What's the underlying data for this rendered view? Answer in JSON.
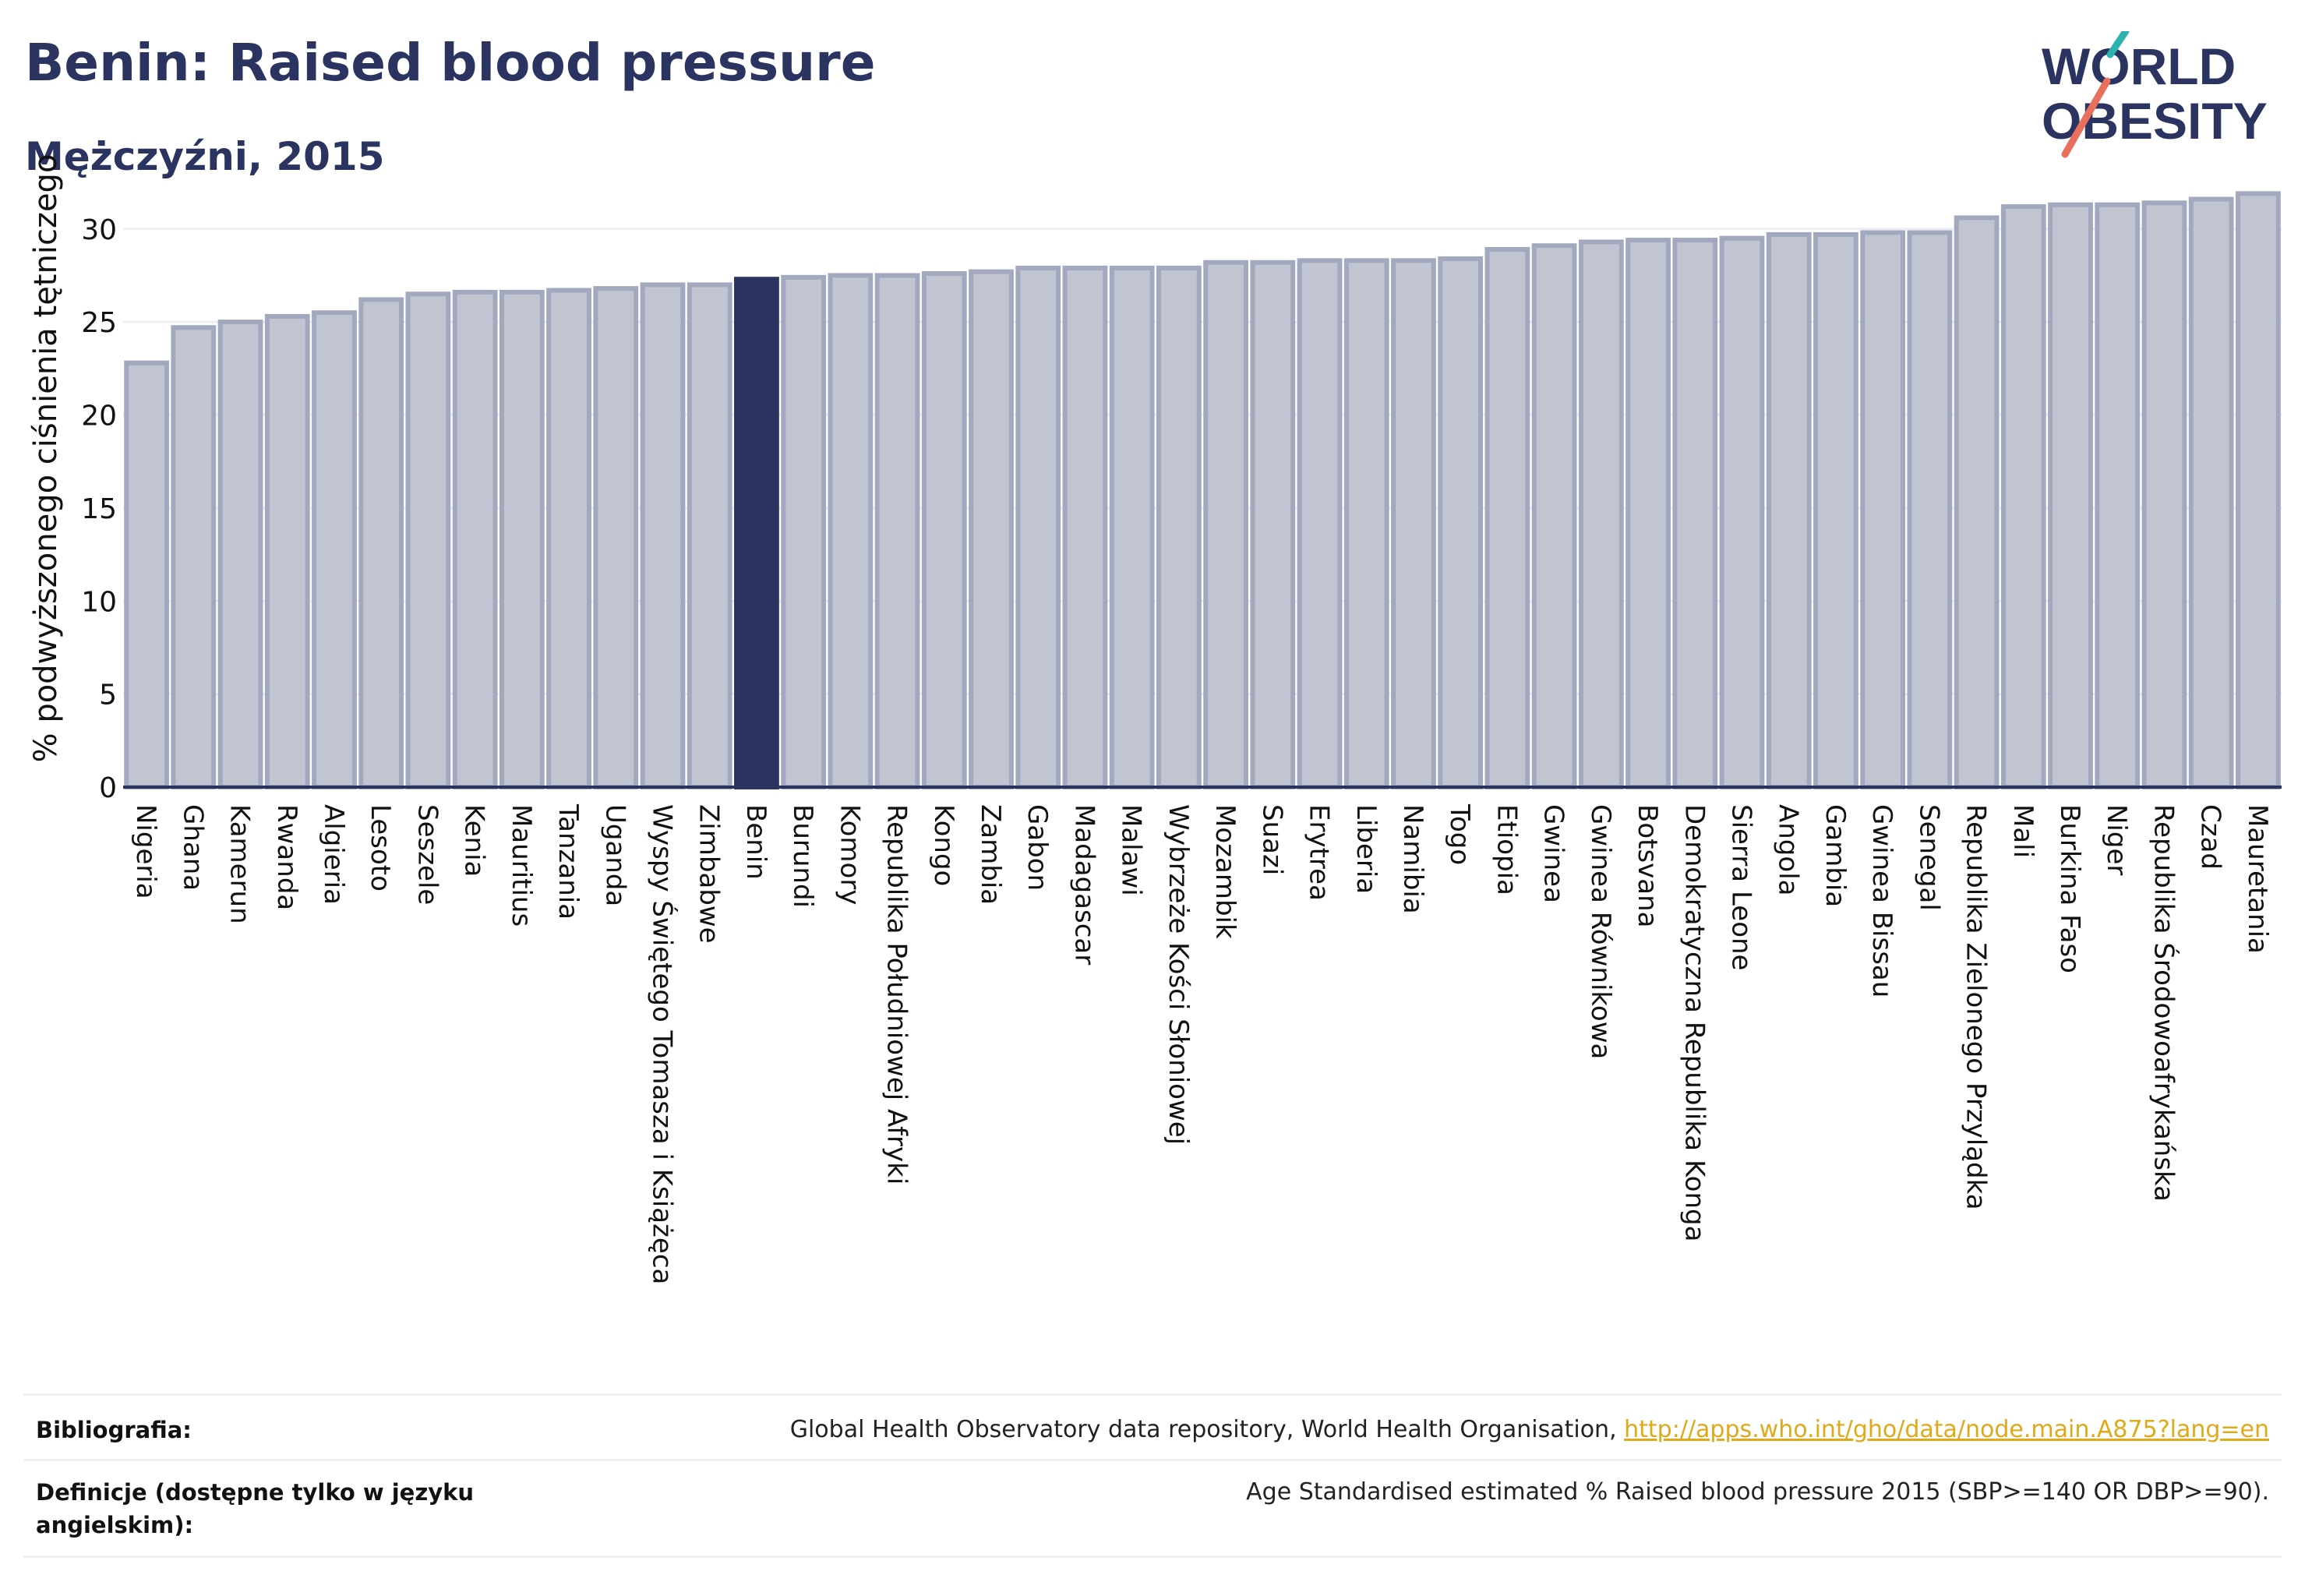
{
  "header": {
    "title": "Benin: Raised blood pressure",
    "subtitle": "Mężczyźni, 2015"
  },
  "logo": {
    "line1": "WORLD",
    "line2": "OBESITY",
    "text_color": "#2b3460",
    "slash_colors": [
      "#2bb3b1",
      "#e8705c"
    ]
  },
  "chart_data": {
    "type": "bar",
    "ylabel": "% podwyższonego ciśnienia tętniczego",
    "xlabel": "",
    "ylim": [
      0,
      32
    ],
    "yticks": [
      0,
      5,
      10,
      15,
      20,
      25,
      30
    ],
    "grid": true,
    "highlight": "Benin",
    "highlight_color": "#2b3460",
    "bar_color": "#c1c5d2",
    "bar_border_color": "#a2a8bd",
    "categories": [
      "Nigeria",
      "Ghana",
      "Kamerun",
      "Rwanda",
      "Algieria",
      "Lesoto",
      "Seszele",
      "Kenia",
      "Mauritius",
      "Tanzania",
      "Uganda",
      "Wyspy Świętego Tomasza i Książęca",
      "Zimbabwe",
      "Benin",
      "Burundi",
      "Komory",
      "Republika Południowej Afryki",
      "Kongo",
      "Zambia",
      "Gabon",
      "Madagascar",
      "Malawi",
      "Wybrzeże Kości Słoniowej",
      "Mozambik",
      "Suazi",
      "Erytrea",
      "Liberia",
      "Namibia",
      "Togo",
      "Etiopia",
      "Gwinea",
      "Gwinea Równikowa",
      "Botsvana",
      "Demokratyczna Republika Konga",
      "Sierra Leone",
      "Angola",
      "Gambia",
      "Gwinea Bissau",
      "Senegal",
      "Republika Zielonego Przylądka",
      "Mali",
      "Burkina Faso",
      "Niger",
      "Republika Środowoafrykańska",
      "Czad",
      "Mauretania"
    ],
    "values": [
      22.8,
      24.7,
      25.0,
      25.3,
      25.5,
      26.2,
      26.5,
      26.6,
      26.6,
      26.7,
      26.8,
      27.0,
      27.0,
      27.3,
      27.4,
      27.5,
      27.5,
      27.6,
      27.7,
      27.9,
      27.9,
      27.9,
      27.9,
      28.2,
      28.2,
      28.3,
      28.3,
      28.3,
      28.4,
      28.9,
      29.1,
      29.3,
      29.4,
      29.4,
      29.5,
      29.7,
      29.7,
      29.8,
      29.8,
      30.6,
      31.2,
      31.3,
      31.3,
      31.4,
      31.6,
      31.9
    ]
  },
  "footer": {
    "bibliography_label": "Bibliografia:",
    "bibliography_text": "Global Health Observatory data repository, World Health Organisation, ",
    "bibliography_link": "http://apps.who.int/gho/data/node.main.A875?lang=en",
    "definitions_label": "Definicje (dostępne tylko w języku angielskim):",
    "definitions_text": "Age Standardised estimated % Raised blood pressure 2015 (SBP>=140 OR DBP>=90)."
  }
}
